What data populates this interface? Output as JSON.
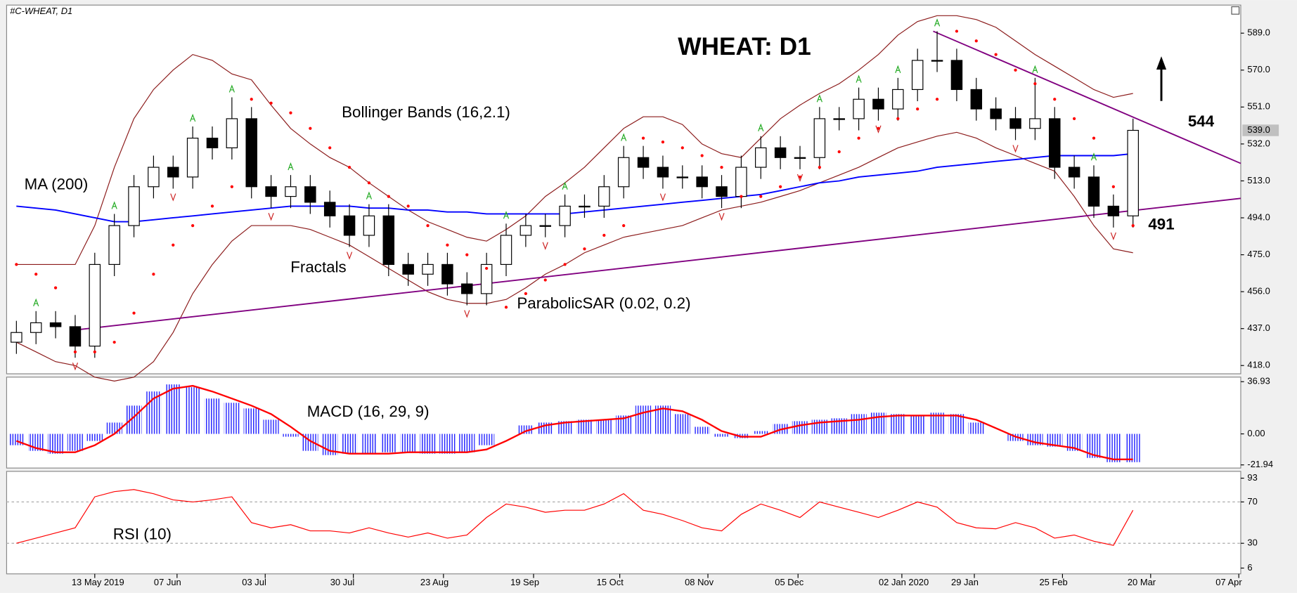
{
  "chart_data": [
    {
      "type": "candlestick",
      "title": "WHEAT: D1",
      "symbol": "#C-WHEAT, D1",
      "xlim": [
        -0.5,
        62.5
      ],
      "ylim": [
        414.6,
        602.6
      ],
      "yticks": [
        {
          "value": 418,
          "label": "418.0"
        },
        {
          "value": 437,
          "label": "437.0"
        },
        {
          "value": 456,
          "label": "456.0"
        },
        {
          "value": 475,
          "label": "475.0"
        },
        {
          "value": 494,
          "label": "494.0"
        },
        {
          "value": 513,
          "label": "513.0"
        },
        {
          "value": 532,
          "label": "532.0"
        },
        {
          "value": 551,
          "label": "551.0"
        },
        {
          "value": 570,
          "label": "570.0"
        },
        {
          "value": 589,
          "label": "589.0"
        }
      ],
      "open": [
        430,
        435,
        440,
        438,
        428,
        470,
        490,
        510,
        520,
        515,
        535,
        530,
        545,
        510,
        505,
        510,
        502,
        495,
        485,
        495,
        470,
        465,
        470,
        460,
        455,
        470,
        485,
        490,
        490,
        500,
        500,
        510,
        525,
        520,
        515,
        515,
        510,
        505,
        520,
        530,
        525,
        525,
        545,
        545,
        555,
        550,
        560,
        575,
        575,
        560,
        550,
        545,
        540,
        545,
        520,
        515,
        500,
        495
      ],
      "high": [
        441,
        446,
        446,
        444,
        476,
        496,
        516,
        526,
        526,
        541,
        541,
        556,
        551,
        516,
        516,
        516,
        508,
        501,
        501,
        501,
        476,
        476,
        476,
        466,
        476,
        491,
        496,
        496,
        506,
        506,
        516,
        531,
        531,
        526,
        521,
        521,
        516,
        526,
        536,
        536,
        531,
        551,
        551,
        561,
        561,
        566,
        581,
        590,
        581,
        566,
        556,
        551,
        566,
        551,
        526,
        521,
        506,
        545
      ],
      "low": [
        424,
        429,
        432,
        422,
        422,
        464,
        484,
        504,
        509,
        509,
        524,
        524,
        504,
        499,
        499,
        496,
        489,
        479,
        479,
        464,
        459,
        459,
        454,
        449,
        449,
        464,
        479,
        484,
        484,
        494,
        494,
        504,
        514,
        509,
        509,
        504,
        499,
        499,
        514,
        519,
        519,
        519,
        539,
        539,
        544,
        544,
        554,
        569,
        554,
        544,
        539,
        534,
        534,
        514,
        509,
        494,
        489,
        489
      ],
      "close": [
        435,
        440,
        438,
        428,
        470,
        490,
        510,
        520,
        515,
        535,
        530,
        545,
        510,
        505,
        510,
        502,
        495,
        485,
        495,
        470,
        465,
        470,
        460,
        455,
        470,
        485,
        490,
        490,
        500,
        500,
        510,
        525,
        520,
        515,
        515,
        510,
        505,
        520,
        530,
        525,
        525,
        545,
        545,
        555,
        550,
        560,
        575,
        575,
        560,
        550,
        545,
        540,
        545,
        520,
        515,
        500,
        495,
        539
      ],
      "close_label": "539.0",
      "ma": {
        "name": "MA (200)",
        "color": "#0000ff",
        "values": [
          500,
          499,
          498,
          496,
          494,
          492,
          492,
          493,
          494,
          495,
          496,
          497,
          498,
          499,
          500,
          500,
          500,
          500,
          499,
          499,
          498,
          498,
          497,
          497,
          496,
          496,
          496,
          496,
          496,
          497,
          498,
          499,
          500,
          501,
          502,
          503,
          504,
          505,
          506,
          508,
          510,
          512,
          513,
          515,
          516,
          517,
          518,
          520,
          521,
          522,
          523,
          524,
          525,
          526,
          526,
          526,
          526,
          527
        ]
      },
      "bollinger": {
        "name": "Bollinger Bands (16,2.1)",
        "color": "#8b1a1a",
        "upper": [
          470,
          470,
          470,
          470,
          490,
          520,
          545,
          560,
          570,
          578,
          575,
          568,
          565,
          552,
          540,
          532,
          525,
          520,
          512,
          505,
          498,
          492,
          488,
          484,
          482,
          488,
          495,
          505,
          512,
          520,
          530,
          540,
          546,
          546,
          542,
          532,
          527,
          525,
          535,
          545,
          552,
          558,
          563,
          570,
          578,
          588,
          595,
          598,
          598,
          596,
          592,
          585,
          578,
          572,
          566,
          560,
          556,
          558
        ],
        "lower": [
          430,
          425,
          420,
          418,
          412,
          410,
          412,
          420,
          435,
          455,
          470,
          482,
          490,
          490,
          490,
          488,
          484,
          480,
          474,
          468,
          462,
          456,
          452,
          450,
          450,
          452,
          458,
          465,
          470,
          476,
          480,
          484,
          486,
          488,
          490,
          494,
          498,
          500,
          502,
          505,
          508,
          512,
          516,
          520,
          525,
          530,
          533,
          536,
          538,
          535,
          530,
          526,
          522,
          518,
          505,
          490,
          478,
          476
        ]
      },
      "sar": {
        "name": "ParabolicSAR (0.02, 0.2)",
        "color": "#ff0000",
        "values": [
          470,
          465,
          458,
          425,
          425,
          430,
          445,
          465,
          480,
          490,
          500,
          510,
          555,
          553,
          548,
          540,
          530,
          520,
          512,
          505,
          500,
          490,
          480,
          475,
          468,
          448,
          455,
          462,
          470,
          478,
          485,
          490,
          535,
          533,
          530,
          526,
          520,
          505,
          505,
          510,
          515,
          520,
          528,
          535,
          540,
          545,
          550,
          555,
          590,
          585,
          578,
          570,
          563,
          555,
          545,
          535,
          510,
          490
        ]
      },
      "fractals": {
        "name": "Fractals",
        "up": [
          null,
          446,
          null,
          null,
          null,
          496,
          null,
          null,
          null,
          541,
          null,
          556,
          null,
          null,
          516,
          null,
          null,
          null,
          501,
          null,
          null,
          null,
          null,
          null,
          null,
          491,
          null,
          null,
          506,
          null,
          null,
          531,
          null,
          null,
          null,
          null,
          null,
          null,
          536,
          null,
          null,
          551,
          null,
          561,
          null,
          566,
          null,
          590,
          null,
          null,
          null,
          null,
          566,
          null,
          null,
          521,
          null,
          null
        ],
        "down": [
          null,
          null,
          null,
          422,
          null,
          null,
          null,
          null,
          509,
          null,
          null,
          null,
          null,
          499,
          null,
          null,
          null,
          479,
          null,
          null,
          null,
          null,
          null,
          449,
          null,
          null,
          null,
          484,
          null,
          null,
          null,
          null,
          null,
          509,
          null,
          null,
          499,
          null,
          null,
          null,
          519,
          null,
          null,
          null,
          544,
          null,
          null,
          null,
          null,
          null,
          null,
          534,
          null,
          null,
          null,
          null,
          489,
          null
        ]
      },
      "trendlines": [
        {
          "color": "#800080",
          "x": [
            2.75,
            62.5
          ],
          "y": [
            436,
            504
          ]
        },
        {
          "color": "#800080",
          "x": [
            46.8,
            62.5
          ],
          "y": [
            590,
            522
          ]
        }
      ],
      "targets": [
        544,
        491
      ]
    },
    {
      "type": "macd",
      "title": "MACD (16, 29, 9)",
      "xlim": [
        -0.5,
        62.5
      ],
      "ylim": [
        -23,
        39
      ],
      "yticks": [
        {
          "value": 36.93,
          "label": "36.93"
        },
        {
          "value": 0,
          "label": "0.00"
        },
        {
          "value": -21.94,
          "label": "-21.94"
        }
      ],
      "histogram": {
        "color": "#0000ff",
        "values": [
          -8,
          -12,
          -14,
          -12,
          -5,
          8,
          20,
          30,
          35,
          33,
          25,
          22,
          18,
          10,
          -2,
          -12,
          -15,
          -14,
          -14,
          -13,
          -13,
          -14,
          -14,
          -13,
          -8,
          0,
          6,
          8,
          9,
          10,
          10,
          13,
          20,
          20,
          14,
          5,
          -2,
          -3,
          2,
          7,
          9,
          10,
          11,
          14,
          15,
          14,
          13,
          15,
          14,
          8,
          0,
          -5,
          -8,
          -9,
          -12,
          -17,
          -20,
          -20
        ]
      },
      "signal": {
        "color": "#ff0000",
        "values": [
          -5,
          -10,
          -13,
          -13,
          -8,
          0,
          12,
          25,
          32,
          34,
          30,
          25,
          20,
          14,
          5,
          -5,
          -12,
          -14,
          -14,
          -14,
          -13,
          -13,
          -13,
          -13,
          -11,
          -5,
          2,
          6,
          8,
          9,
          10,
          11,
          15,
          18,
          16,
          10,
          2,
          -2,
          -2,
          3,
          6,
          8,
          9,
          10,
          12,
          13,
          13,
          13,
          13,
          10,
          4,
          -2,
          -6,
          -8,
          -10,
          -15,
          -18,
          -18
        ]
      }
    },
    {
      "type": "line",
      "title": "RSI (10)",
      "color": "#ff0000",
      "xlim": [
        -0.5,
        62.5
      ],
      "ylim": [
        2,
        98
      ],
      "yticks": [
        6,
        30,
        70,
        93
      ],
      "levels": [
        30,
        70
      ],
      "values": [
        30,
        35,
        40,
        45,
        75,
        80,
        82,
        78,
        72,
        70,
        72,
        75,
        50,
        45,
        48,
        42,
        42,
        40,
        45,
        40,
        36,
        40,
        35,
        38,
        55,
        68,
        65,
        60,
        62,
        62,
        68,
        78,
        62,
        58,
        52,
        45,
        42,
        58,
        68,
        62,
        55,
        70,
        65,
        60,
        55,
        62,
        70,
        65,
        50,
        45,
        44,
        50,
        45,
        35,
        38,
        32,
        28,
        62
      ],
      "xticks": [
        {
          "value": 4.0,
          "label": "13 May 2019"
        },
        {
          "value": 8.2,
          "label": "07 Jun"
        },
        {
          "value": 12.7,
          "label": "03 Jul"
        },
        {
          "value": 17.2,
          "label": "30 Jul"
        },
        {
          "value": 21.8,
          "label": "23 Aug"
        },
        {
          "value": 26.4,
          "label": "19 Sep"
        },
        {
          "value": 30.8,
          "label": "15 Oct"
        },
        {
          "value": 35.3,
          "label": "08 Nov"
        },
        {
          "value": 39.9,
          "label": "05 Dec"
        },
        {
          "value": 45.2,
          "label": "02 Jan 2020"
        },
        {
          "value": 48.9,
          "label": "29 Jan"
        },
        {
          "value": 53.4,
          "label": "25 Feb"
        },
        {
          "value": 57.9,
          "label": "20 Mar"
        },
        {
          "value": 62.4,
          "label": "07 Apr"
        }
      ]
    }
  ]
}
